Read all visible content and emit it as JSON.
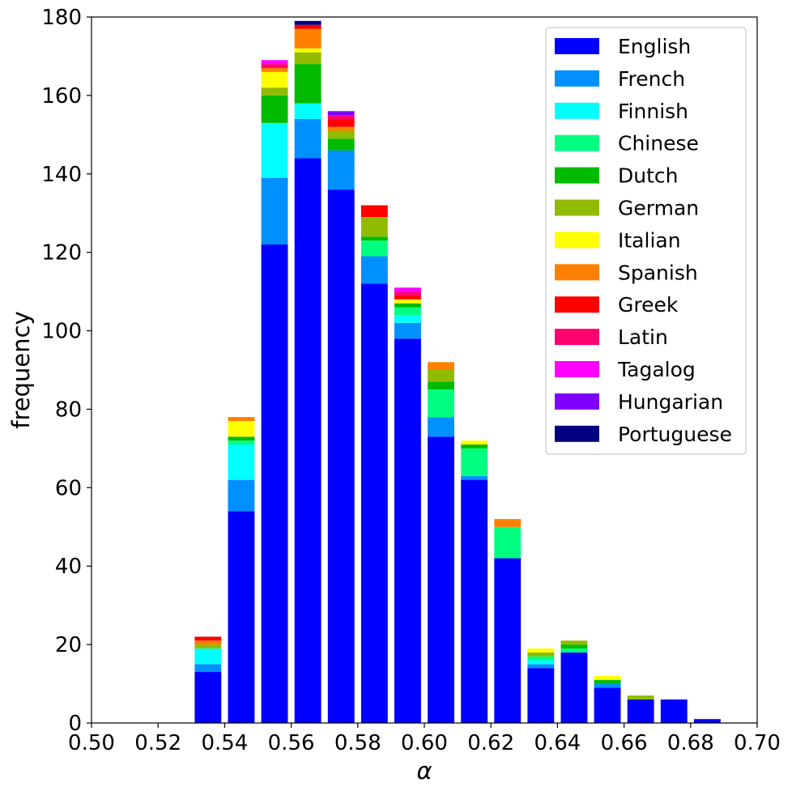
{
  "chart_data": {
    "type": "bar",
    "stacked": true,
    "xlabel": "α",
    "ylabel": "frequency",
    "xlim": [
      0.5,
      0.7
    ],
    "ylim": [
      0,
      180
    ],
    "xticks": [
      "0.50",
      "0.52",
      "0.54",
      "0.56",
      "0.58",
      "0.60",
      "0.62",
      "0.64",
      "0.66",
      "0.68",
      "0.70"
    ],
    "yticks": [
      "0",
      "20",
      "40",
      "60",
      "80",
      "100",
      "120",
      "140",
      "160",
      "180"
    ],
    "bin_width": 0.01,
    "bins": [
      0.535,
      0.545,
      0.555,
      0.565,
      0.575,
      0.585,
      0.595,
      0.605,
      0.615,
      0.625,
      0.635,
      0.645,
      0.655,
      0.665,
      0.675,
      0.685
    ],
    "legend_position": "top-right",
    "grid": false,
    "series": [
      {
        "name": "English",
        "color": "#0000ff",
        "values": [
          13,
          54,
          122,
          144,
          136,
          112,
          98,
          73,
          62,
          42,
          14,
          18,
          9,
          6,
          6,
          1
        ]
      },
      {
        "name": "French",
        "color": "#0090ff",
        "values": [
          2,
          8,
          17,
          10,
          10,
          7,
          4,
          5,
          1,
          0,
          1,
          0,
          1,
          0,
          0,
          0
        ]
      },
      {
        "name": "Finnish",
        "color": "#00ffff",
        "values": [
          4,
          9,
          14,
          4,
          0,
          0,
          2,
          0,
          0,
          0,
          1,
          0,
          0,
          0,
          0,
          0
        ]
      },
      {
        "name": "Chinese",
        "color": "#00ff80",
        "values": [
          0,
          1,
          0,
          0,
          0,
          4,
          2,
          7,
          7,
          8,
          1,
          1,
          0,
          0,
          0,
          0
        ]
      },
      {
        "name": "Dutch",
        "color": "#00bb00",
        "values": [
          0,
          1,
          7,
          10,
          3,
          1,
          1,
          2,
          1,
          0,
          0,
          1,
          1,
          0,
          0,
          0
        ]
      },
      {
        "name": "German",
        "color": "#90bb00",
        "values": [
          1,
          0,
          2,
          3,
          2,
          5,
          0,
          3,
          0,
          0,
          1,
          1,
          0,
          1,
          0,
          0
        ]
      },
      {
        "name": "Italian",
        "color": "#ffff00",
        "values": [
          0,
          4,
          4,
          1,
          0,
          0,
          1,
          0,
          1,
          0,
          1,
          0,
          1,
          0,
          0,
          0
        ]
      },
      {
        "name": "Spanish",
        "color": "#ff8000",
        "values": [
          1,
          1,
          1,
          5,
          1,
          0,
          0,
          2,
          0,
          2,
          0,
          0,
          0,
          0,
          0,
          0
        ]
      },
      {
        "name": "Greek",
        "color": "#ff0000",
        "values": [
          1,
          0,
          0,
          1,
          2,
          3,
          1,
          0,
          0,
          0,
          0,
          0,
          0,
          0,
          0,
          0
        ]
      },
      {
        "name": "Latin",
        "color": "#ff0070",
        "values": [
          0,
          0,
          1,
          0,
          1,
          0,
          1,
          0,
          0,
          0,
          0,
          0,
          0,
          0,
          0,
          0
        ]
      },
      {
        "name": "Tagalog",
        "color": "#ff00ff",
        "values": [
          0,
          0,
          1,
          0,
          0,
          0,
          1,
          0,
          0,
          0,
          0,
          0,
          0,
          0,
          0,
          0
        ]
      },
      {
        "name": "Hungarian",
        "color": "#8000ff",
        "values": [
          0,
          0,
          0,
          0,
          1,
          0,
          0,
          0,
          0,
          0,
          0,
          0,
          0,
          0,
          0,
          0
        ]
      },
      {
        "name": "Portuguese",
        "color": "#000080",
        "values": [
          0,
          0,
          0,
          1,
          0,
          0,
          0,
          0,
          0,
          0,
          0,
          0,
          0,
          0,
          0,
          0
        ]
      }
    ]
  }
}
